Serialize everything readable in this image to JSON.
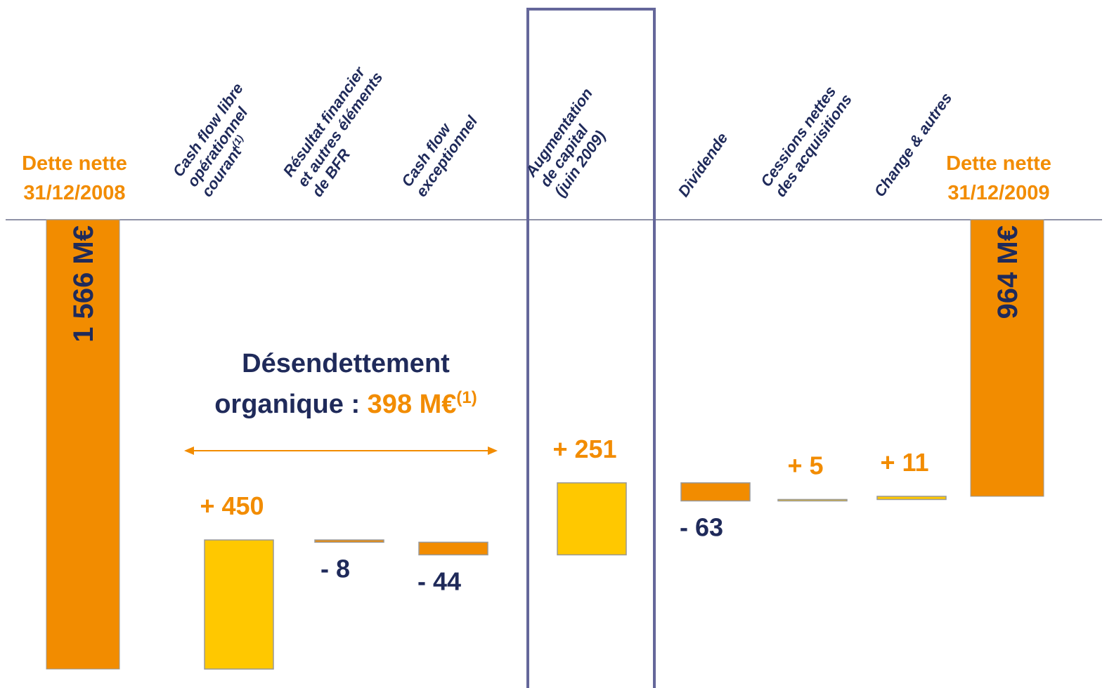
{
  "chart_data": {
    "type": "waterfall",
    "categories": [
      [
        "Dette nette",
        "31/12/2008"
      ],
      [
        "Cash flow libre",
        "opérationnel",
        "courant"
      ],
      [
        "Résultat financier",
        "et autres éléments",
        "de BFR"
      ],
      [
        "Cash flow",
        "exceptionnel"
      ],
      [
        "Augmentation",
        "de capital",
        "(juin 2009)"
      ],
      [
        "Dividende"
      ],
      [
        "Cessions nettes",
        "des acquisitions"
      ],
      [
        "Change & autres"
      ],
      [
        "Dette nette",
        "31/12/2009"
      ]
    ],
    "category_note": "(1)",
    "measure": [
      "total",
      "relative",
      "relative",
      "relative",
      "relative",
      "relative",
      "relative",
      "relative",
      "total"
    ],
    "values": [
      1566,
      450,
      -8,
      -44,
      251,
      -63,
      5,
      11,
      964
    ],
    "value_labels": [
      "1 566 M€",
      "+ 450",
      "- 8",
      "- 44",
      "+ 251",
      "- 63",
      "+  5",
      "+ 11",
      "964 M€"
    ],
    "colors": {
      "total": "#F28C00",
      "increase": "#FFC800",
      "decrease": "#F28C00"
    },
    "highlight_category": 4,
    "annotation": {
      "lines": [
        "Désendettement",
        "organique : "
      ],
      "highlight": "398 M€",
      "note": "(1)"
    }
  }
}
